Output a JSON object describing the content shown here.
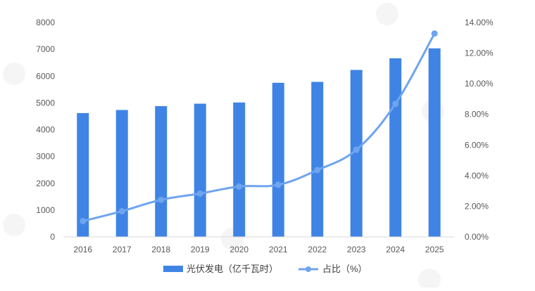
{
  "chart_data": {
    "type": "bar+line",
    "categories": [
      "2016",
      "2017",
      "2018",
      "2019",
      "2020",
      "2021",
      "2022",
      "2023",
      "2024",
      "2025"
    ],
    "series": [
      {
        "name": "光伏发电（亿千瓦时）",
        "type": "bar",
        "axis": "left",
        "color": "#3F84E5",
        "values": [
          4620,
          4735,
          4880,
          4970,
          5015,
          5750,
          5785,
          6230,
          6665,
          7035
        ]
      },
      {
        "name": "占比（%）",
        "type": "line",
        "axis": "right",
        "color": "#6FA4EE",
        "values": [
          1.03,
          1.68,
          2.42,
          2.83,
          3.29,
          3.4,
          4.36,
          5.69,
          8.69,
          13.28
        ]
      }
    ],
    "left_axis": {
      "ylim": [
        0,
        8000
      ],
      "ticks": [
        "0",
        "1000",
        "2000",
        "3000",
        "4000",
        "5000",
        "6000",
        "7000",
        "8000"
      ]
    },
    "right_axis": {
      "ylim": [
        0,
        14
      ],
      "ticks": [
        "0.00%",
        "2.00%",
        "4.00%",
        "6.00%",
        "8.00%",
        "10.00%",
        "12.00%",
        "14.00%"
      ]
    },
    "grid": false,
    "legend": "bottom"
  }
}
